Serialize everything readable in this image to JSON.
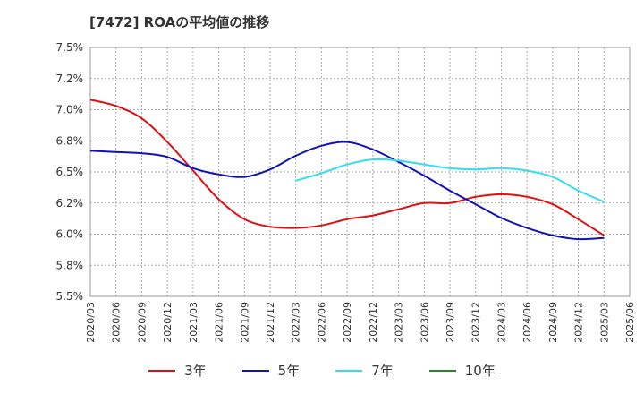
{
  "title": "[7472]  ROAの平均値の推移",
  "chart_data": {
    "type": "line",
    "title": "[7472]  ROAの平均値の推移",
    "xlabel": "",
    "ylabel": "",
    "ylim": [
      5.5,
      7.5
    ],
    "y_ticks": [
      5.5,
      5.75,
      6.0,
      6.25,
      6.5,
      6.75,
      7.0,
      7.25,
      7.5
    ],
    "y_tick_labels": [
      "5.5%",
      "5.8%",
      "6.0%",
      "6.2%",
      "6.5%",
      "6.8%",
      "7.0%",
      "7.2%",
      "7.5%"
    ],
    "x_ticks": [
      "2020/03",
      "2020/06",
      "2020/09",
      "2020/12",
      "2021/03",
      "2021/06",
      "2021/09",
      "2021/12",
      "2022/03",
      "2022/06",
      "2022/09",
      "2022/12",
      "2023/03",
      "2023/06",
      "2023/09",
      "2023/12",
      "2024/03",
      "2024/06",
      "2024/09",
      "2024/12",
      "2025/03",
      "2025/06"
    ],
    "grid": true,
    "legend_position": "bottom",
    "series": [
      {
        "name": "3年",
        "color": "#dd1111",
        "x": [
          "2020/03",
          "2020/06",
          "2020/09",
          "2020/12",
          "2021/03",
          "2021/06",
          "2021/09",
          "2021/12",
          "2022/03",
          "2022/06",
          "2022/09",
          "2022/12",
          "2023/03",
          "2023/06",
          "2023/09",
          "2023/12",
          "2024/03",
          "2024/06",
          "2024/09",
          "2024/12",
          "2025/03"
        ],
        "values": [
          7.08,
          7.03,
          6.93,
          6.74,
          6.51,
          6.28,
          6.12,
          6.06,
          6.05,
          6.07,
          6.12,
          6.15,
          6.2,
          6.25,
          6.25,
          6.3,
          6.32,
          6.3,
          6.24,
          6.12,
          5.99
        ]
      },
      {
        "name": "5年",
        "color": "#1111bb",
        "x": [
          "2020/03",
          "2020/06",
          "2020/09",
          "2020/12",
          "2021/03",
          "2021/06",
          "2021/09",
          "2021/12",
          "2022/03",
          "2022/06",
          "2022/09",
          "2022/12",
          "2023/03",
          "2023/06",
          "2023/09",
          "2023/12",
          "2024/03",
          "2024/06",
          "2024/09",
          "2024/12",
          "2025/03"
        ],
        "values": [
          6.67,
          6.66,
          6.65,
          6.62,
          6.53,
          6.48,
          6.46,
          6.52,
          6.63,
          6.71,
          6.74,
          6.68,
          6.58,
          6.47,
          6.35,
          6.24,
          6.13,
          6.05,
          5.99,
          5.96,
          5.97
        ]
      },
      {
        "name": "7年",
        "color": "#33ddee",
        "x": [
          "2022/03",
          "2022/06",
          "2022/09",
          "2022/12",
          "2023/03",
          "2023/06",
          "2023/09",
          "2023/12",
          "2024/03",
          "2024/06",
          "2024/09",
          "2024/12",
          "2025/03"
        ],
        "values": [
          6.43,
          6.49,
          6.56,
          6.6,
          6.59,
          6.56,
          6.53,
          6.52,
          6.53,
          6.51,
          6.46,
          6.35,
          6.26
        ]
      },
      {
        "name": "10年",
        "color": "#228822",
        "x": [],
        "values": []
      }
    ]
  }
}
